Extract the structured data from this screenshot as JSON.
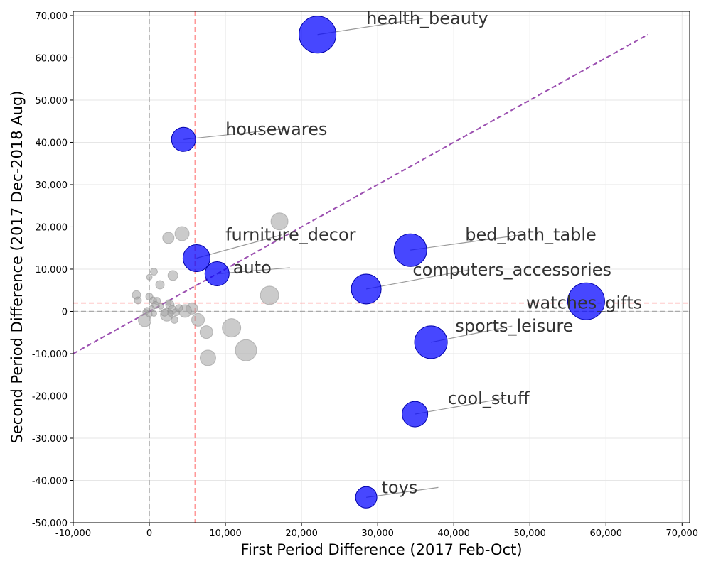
{
  "chart_data": {
    "type": "scatter",
    "xlabel": "First Period Difference (2017 Feb-Oct)",
    "ylabel": "Second Period Difference (2017 Dec-2018 Aug)",
    "xlim": [
      -10000,
      71000
    ],
    "ylim": [
      -50000,
      71000
    ],
    "x_ticks": [
      -10000,
      0,
      10000,
      20000,
      30000,
      40000,
      50000,
      60000,
      70000
    ],
    "x_tick_labels": [
      "-10,000",
      "0",
      "10,000",
      "20,000",
      "30,000",
      "40,000",
      "50,000",
      "60,000",
      "70,000"
    ],
    "y_ticks": [
      -50000,
      -40000,
      -30000,
      -20000,
      -10000,
      0,
      10000,
      20000,
      30000,
      40000,
      50000,
      60000,
      70000
    ],
    "y_tick_labels": [
      "-50,000",
      "-40,000",
      "-30,000",
      "-20,000",
      "-10,000",
      "0",
      "10,000",
      "20,000",
      "30,000",
      "40,000",
      "50,000",
      "60,000",
      "70,000"
    ],
    "grid": true,
    "reference_lines": {
      "x_zero": 0,
      "y_zero": 0,
      "x_threshold": 6000,
      "y_threshold": 2000,
      "diagonal": [
        [
          -10000,
          -10000
        ],
        [
          65500,
          65500
        ]
      ]
    },
    "colors": {
      "highlight": "#0000ff",
      "other": "#a9a9a9",
      "threshold": "#ff9999",
      "zero": "#aaaaaa",
      "diagonal": "#9b4fb0",
      "leader": "#999999"
    },
    "highlighted": [
      {
        "label": "health_beauty",
        "x": 22100,
        "y": 65500,
        "size": 26,
        "label_at": [
          28500,
          68000
        ]
      },
      {
        "label": "housewares",
        "x": 4500,
        "y": 40700,
        "size": 17,
        "label_at": [
          10000,
          41800
        ]
      },
      {
        "label": "furniture_decor",
        "x": 6200,
        "y": 12600,
        "size": 19,
        "label_at": [
          10000,
          16800
        ]
      },
      {
        "label": "auto",
        "x": 8900,
        "y": 8900,
        "size": 17,
        "label_at": [
          11000,
          9000
        ]
      },
      {
        "label": "bed_bath_table",
        "x": 34300,
        "y": 14500,
        "size": 23,
        "label_at": [
          41500,
          16800
        ]
      },
      {
        "label": "computers_accessories",
        "x": 28500,
        "y": 5300,
        "size": 21,
        "label_at": [
          34600,
          8500
        ]
      },
      {
        "label": "watches_gifts",
        "x": 57400,
        "y": 2400,
        "size": 26,
        "label_at": [
          49500,
          700
        ]
      },
      {
        "label": "sports_leisure",
        "x": 37000,
        "y": -7300,
        "size": 23,
        "label_at": [
          40200,
          -4800
        ]
      },
      {
        "label": "cool_stuff",
        "x": 34900,
        "y": -24300,
        "size": 18,
        "label_at": [
          39200,
          -21900
        ]
      },
      {
        "label": "toys",
        "x": 28500,
        "y": -44000,
        "size": 15,
        "label_at": [
          30500,
          -43000
        ]
      }
    ],
    "others": [
      {
        "x": 17100,
        "y": 21300,
        "size": 12
      },
      {
        "x": 4300,
        "y": 18400,
        "size": 10
      },
      {
        "x": 2500,
        "y": 17400,
        "size": 8
      },
      {
        "x": 3100,
        "y": 8500,
        "size": 7
      },
      {
        "x": 1400,
        "y": 6300,
        "size": 6
      },
      {
        "x": 600,
        "y": 9400,
        "size": 5
      },
      {
        "x": 0,
        "y": 8100,
        "size": 4
      },
      {
        "x": 15800,
        "y": 3800,
        "size": 13
      },
      {
        "x": 10800,
        "y": -3900,
        "size": 13
      },
      {
        "x": 12700,
        "y": -9200,
        "size": 15
      },
      {
        "x": 7700,
        "y": -11000,
        "size": 11
      },
      {
        "x": 7500,
        "y": -4900,
        "size": 9
      },
      {
        "x": 6400,
        "y": -2000,
        "size": 9
      },
      {
        "x": 5600,
        "y": 700,
        "size": 8
      },
      {
        "x": 4700,
        "y": 100,
        "size": 9
      },
      {
        "x": 2300,
        "y": -800,
        "size": 9
      },
      {
        "x": -600,
        "y": -2100,
        "size": 9
      },
      {
        "x": 2700,
        "y": 1600,
        "size": 6
      },
      {
        "x": 3000,
        "y": 400,
        "size": 6
      },
      {
        "x": 3500,
        "y": -200,
        "size": 5
      },
      {
        "x": 3900,
        "y": 800,
        "size": 5
      },
      {
        "x": 3300,
        "y": -2000,
        "size": 5
      },
      {
        "x": 2000,
        "y": -300,
        "size": 5
      },
      {
        "x": -1700,
        "y": 3900,
        "size": 6
      },
      {
        "x": -1500,
        "y": 2600,
        "size": 5
      },
      {
        "x": 0,
        "y": 3500,
        "size": 5
      },
      {
        "x": 500,
        "y": 2600,
        "size": 5
      },
      {
        "x": 1000,
        "y": 2500,
        "size": 5
      },
      {
        "x": 800,
        "y": 1500,
        "size": 5
      },
      {
        "x": 300,
        "y": 700,
        "size": 4
      },
      {
        "x": -300,
        "y": 300,
        "size": 4
      },
      {
        "x": -500,
        "y": -200,
        "size": 4
      },
      {
        "x": 600,
        "y": -500,
        "size": 4
      },
      {
        "x": 0,
        "y": -700,
        "size": 4
      },
      {
        "x": 1500,
        "y": 1200,
        "size": 4
      },
      {
        "x": 2500,
        "y": 2100,
        "size": 4
      },
      {
        "x": 2800,
        "y": -500,
        "size": 4
      }
    ]
  }
}
